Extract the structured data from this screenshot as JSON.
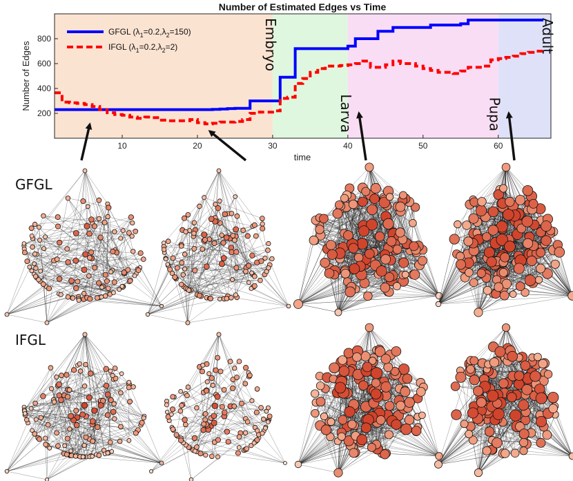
{
  "chart_data": {
    "type": "line",
    "title": "Number of Estimated Edges vs Time",
    "xlabel": "time",
    "ylabel": "Number of Edges",
    "xlim": [
      1,
      67
    ],
    "ylim": [
      0,
      1000
    ],
    "xticks": [
      10,
      20,
      30,
      40,
      50,
      60
    ],
    "yticks": [
      200,
      400,
      600,
      800
    ],
    "grid": false,
    "legend_position": "top-left",
    "stages": [
      {
        "name": "Embryo",
        "start": 1,
        "end": 30,
        "color": "#fbe3d2"
      },
      {
        "name": "Larva",
        "start": 30,
        "end": 40,
        "color": "#dff7de"
      },
      {
        "name": "Pupa",
        "start": 40,
        "end": 60,
        "color": "#f9ddf5"
      },
      {
        "name": "Adult",
        "start": 60,
        "end": 67,
        "color": "#dfe1f8"
      }
    ],
    "series": [
      {
        "name": "GFGL (λ1=0.2,λ2=150)",
        "legend_main": "GFGL (λ",
        "legend_s1": "1",
        "legend_mid": "=0.2,λ",
        "legend_s2": "2",
        "legend_tail": "=150)",
        "color": "#0000ff",
        "dash": "solid",
        "x": [
          1,
          2,
          3,
          4,
          5,
          6,
          7,
          8,
          9,
          10,
          11,
          12,
          13,
          14,
          15,
          16,
          17,
          18,
          19,
          20,
          21,
          22,
          23,
          24,
          25,
          26,
          27,
          28,
          29,
          30,
          31,
          32,
          33,
          34,
          35,
          36,
          37,
          38,
          39,
          40,
          41,
          42,
          43,
          44,
          45,
          46,
          47,
          48,
          49,
          50,
          51,
          52,
          53,
          54,
          55,
          56,
          57,
          58,
          59,
          60,
          61,
          62,
          63,
          64,
          65,
          66
        ],
        "y": [
          230,
          230,
          230,
          230,
          230,
          230,
          230,
          230,
          230,
          230,
          230,
          230,
          230,
          230,
          230,
          230,
          230,
          230,
          230,
          230,
          230,
          232,
          235,
          238,
          240,
          240,
          300,
          300,
          300,
          300,
          490,
          490,
          720,
          720,
          720,
          720,
          720,
          720,
          720,
          740,
          800,
          800,
          800,
          860,
          860,
          890,
          890,
          890,
          890,
          890,
          910,
          910,
          910,
          910,
          920,
          950,
          950,
          950,
          950,
          950,
          950,
          950,
          950,
          950,
          950,
          950
        ]
      },
      {
        "name": "IFGL (λ1=0.2,λ2=2)",
        "legend_main": "IFGL (λ",
        "legend_s1": "1",
        "legend_mid": "=0.2,λ",
        "legend_s2": "2",
        "legend_tail": "=2)",
        "color": "#ff0000",
        "dash": "dashed",
        "x": [
          1,
          2,
          3,
          4,
          5,
          6,
          7,
          8,
          9,
          10,
          11,
          12,
          13,
          14,
          15,
          16,
          17,
          18,
          19,
          20,
          21,
          22,
          23,
          24,
          25,
          26,
          27,
          28,
          29,
          30,
          31,
          32,
          33,
          34,
          35,
          36,
          37,
          38,
          39,
          40,
          41,
          42,
          43,
          44,
          45,
          46,
          47,
          48,
          49,
          50,
          51,
          52,
          53,
          54,
          55,
          56,
          57,
          58,
          59,
          60,
          61,
          62,
          63,
          64,
          65,
          66
        ],
        "y": [
          365,
          290,
          285,
          280,
          270,
          255,
          230,
          205,
          190,
          185,
          170,
          160,
          170,
          165,
          145,
          140,
          140,
          140,
          150,
          125,
          115,
          120,
          130,
          130,
          135,
          150,
          200,
          210,
          210,
          220,
          320,
          330,
          440,
          480,
          530,
          560,
          580,
          580,
          585,
          590,
          600,
          620,
          570,
          570,
          590,
          620,
          600,
          600,
          580,
          560,
          545,
          530,
          530,
          520,
          540,
          570,
          570,
          580,
          630,
          640,
          650,
          660,
          680,
          690,
          700,
          700
        ]
      }
    ]
  },
  "row_labels": {
    "gfgl": "GFGL",
    "ifgl": "IFGL"
  },
  "colors": {
    "node_light": "#fde8dc",
    "node_mid": "#f4a88a",
    "node_dark": "#d1442c",
    "axes": "#222222"
  },
  "networks": {
    "gfgl": [
      {
        "nodes": 130,
        "edges": 230
      },
      {
        "nodes": 130,
        "edges": 230
      },
      {
        "nodes": 130,
        "edges": 720
      },
      {
        "nodes": 130,
        "edges": 950
      }
    ],
    "ifgl": [
      {
        "nodes": 130,
        "edges": 285
      },
      {
        "nodes": 130,
        "edges": 115
      },
      {
        "nodes": 130,
        "edges": 590
      },
      {
        "nodes": 130,
        "edges": 640
      }
    ]
  }
}
